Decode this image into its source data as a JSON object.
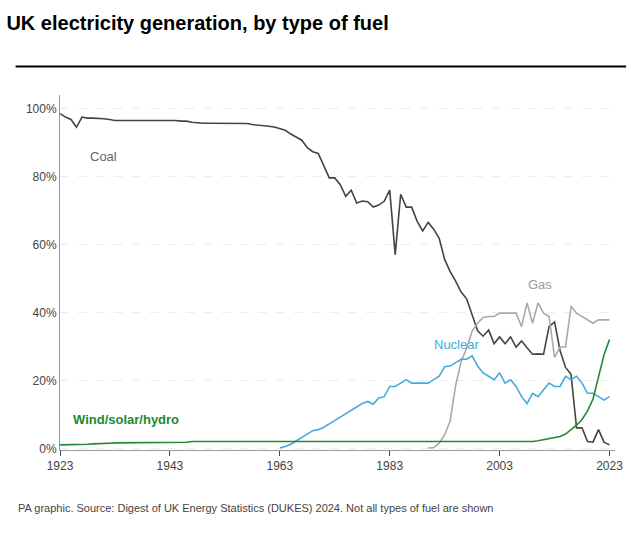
{
  "chart_data": {
    "type": "line",
    "title": "UK electricity generation, by type of fuel",
    "caption": "PA graphic. Source: Digest of UK Energy Statistics (DUKES) 2024. Not all types of fuel are shown",
    "x": [
      1923,
      1924,
      1925,
      1926,
      1927,
      1928,
      1929,
      1930,
      1931,
      1932,
      1933,
      1934,
      1935,
      1936,
      1937,
      1938,
      1939,
      1940,
      1941,
      1942,
      1943,
      1944,
      1945,
      1946,
      1947,
      1948,
      1949,
      1950,
      1951,
      1952,
      1953,
      1954,
      1955,
      1956,
      1957,
      1958,
      1959,
      1960,
      1961,
      1962,
      1963,
      1964,
      1965,
      1966,
      1967,
      1968,
      1969,
      1970,
      1971,
      1972,
      1973,
      1974,
      1975,
      1976,
      1977,
      1978,
      1979,
      1980,
      1981,
      1982,
      1983,
      1984,
      1985,
      1986,
      1987,
      1988,
      1989,
      1990,
      1991,
      1992,
      1993,
      1994,
      1995,
      1996,
      1997,
      1998,
      1999,
      2000,
      2001,
      2002,
      2003,
      2004,
      2005,
      2006,
      2007,
      2008,
      2009,
      2010,
      2011,
      2012,
      2013,
      2014,
      2015,
      2016,
      2017,
      2018,
      2019,
      2020,
      2021,
      2022,
      2023
    ],
    "series": [
      {
        "name": "Coal",
        "color": "#444444",
        "values": [
          0.985,
          0.975,
          0.968,
          0.945,
          0.975,
          0.972,
          0.972,
          0.972,
          0.97,
          0.968,
          0.965,
          0.965,
          0.965,
          0.965,
          0.965,
          0.965,
          0.966,
          0.967,
          0.967,
          0.967,
          0.967,
          0.965,
          0.963,
          0.963,
          0.96,
          0.958,
          0.957,
          0.957,
          0.957,
          0.956,
          0.956,
          0.956,
          0.956,
          0.956,
          0.956,
          0.953,
          0.952,
          0.951,
          0.948,
          0.946,
          0.94,
          0.936,
          0.925,
          0.915,
          0.907,
          0.885,
          0.873,
          0.868,
          0.831,
          0.796,
          0.796,
          0.776,
          0.742,
          0.76,
          0.722,
          0.728,
          0.726,
          0.71,
          0.716,
          0.727,
          0.76,
          0.57,
          0.748,
          0.71,
          0.71,
          0.668,
          0.64,
          0.665,
          0.645,
          0.618,
          0.556,
          0.52,
          0.492,
          0.46,
          0.44,
          0.39,
          0.346,
          0.33,
          0.348,
          0.308,
          0.328,
          0.308,
          0.328,
          0.298,
          0.316,
          0.296,
          0.277,
          0.278,
          0.277,
          0.358,
          0.372,
          0.288,
          0.238,
          0.218,
          0.06,
          0.06,
          0.02,
          0.018,
          0.055,
          0.018,
          0.01
        ]
      },
      {
        "name": "Gas",
        "color": "#aaaaaa",
        "values": [
          null,
          null,
          null,
          null,
          null,
          null,
          null,
          null,
          null,
          null,
          null,
          null,
          null,
          null,
          null,
          null,
          null,
          null,
          null,
          null,
          null,
          null,
          null,
          null,
          null,
          null,
          null,
          null,
          null,
          null,
          null,
          null,
          null,
          null,
          null,
          null,
          null,
          null,
          null,
          null,
          null,
          null,
          null,
          null,
          null,
          null,
          null,
          null,
          null,
          null,
          null,
          null,
          null,
          null,
          null,
          null,
          null,
          null,
          null,
          null,
          null,
          null,
          null,
          null,
          null,
          null,
          null,
          0.001,
          0.002,
          0.015,
          0.04,
          0.08,
          0.185,
          0.255,
          0.295,
          0.345,
          0.368,
          0.385,
          0.388,
          0.388,
          0.398,
          0.398,
          0.398,
          0.398,
          0.358,
          0.428,
          0.368,
          0.428,
          0.398,
          0.388,
          0.268,
          0.298,
          0.298,
          0.418,
          0.398,
          0.388,
          0.378,
          0.368,
          0.378,
          0.378,
          0.378
        ]
      },
      {
        "name": "Nuclear",
        "color": "#44aadd",
        "values": [
          null,
          null,
          null,
          null,
          null,
          null,
          null,
          null,
          null,
          null,
          null,
          null,
          null,
          null,
          null,
          null,
          null,
          null,
          null,
          null,
          null,
          null,
          null,
          null,
          null,
          null,
          null,
          null,
          null,
          null,
          null,
          null,
          null,
          null,
          null,
          null,
          null,
          null,
          null,
          null,
          0.001,
          0.005,
          0.012,
          0.022,
          0.03,
          0.042,
          0.052,
          0.055,
          0.062,
          0.072,
          0.082,
          0.092,
          0.102,
          0.112,
          0.122,
          0.132,
          0.138,
          0.13,
          0.148,
          0.152,
          0.182,
          0.182,
          0.192,
          0.202,
          0.192,
          0.192,
          0.192,
          0.192,
          0.202,
          0.212,
          0.24,
          0.242,
          0.252,
          0.262,
          0.262,
          0.272,
          0.242,
          0.222,
          0.212,
          0.202,
          0.222,
          0.192,
          0.202,
          0.182,
          0.152,
          0.132,
          0.162,
          0.152,
          0.172,
          0.192,
          0.182,
          0.182,
          0.212,
          0.202,
          0.212,
          0.192,
          0.162,
          0.162,
          0.152,
          0.142,
          0.152
        ]
      },
      {
        "name": "Wind/solar/hydro",
        "color": "#228833",
        "values": [
          0.01,
          0.01,
          0.01,
          0.012,
          0.012,
          0.012,
          0.013,
          0.013,
          0.015,
          0.015,
          0.016,
          0.016,
          0.017,
          0.018,
          0.018,
          0.018,
          0.018,
          0.018,
          0.018,
          0.018,
          0.018,
          0.018,
          0.018,
          0.018,
          0.02,
          0.02,
          0.02,
          0.02,
          0.02,
          0.02,
          0.02,
          0.02,
          0.02,
          0.02,
          0.02,
          0.018,
          0.018,
          0.018,
          0.018,
          0.018,
          0.018,
          0.018,
          0.018,
          0.018,
          0.018,
          0.018,
          0.018,
          0.018,
          0.018,
          0.018,
          0.018,
          0.018,
          0.018,
          0.018,
          0.018,
          0.018,
          0.018,
          0.018,
          0.018,
          0.018,
          0.018,
          0.018,
          0.018,
          0.018,
          0.018,
          0.018,
          0.018,
          0.018,
          0.018,
          0.018,
          0.018,
          0.018,
          0.018,
          0.018,
          0.018,
          0.018,
          0.018,
          0.018,
          0.018,
          0.018,
          0.018,
          0.018,
          0.018,
          0.018,
          0.018,
          0.02,
          0.02,
          0.022,
          0.025,
          0.028,
          0.03,
          0.035,
          0.042,
          0.055,
          0.068,
          0.085,
          0.11,
          0.145,
          0.21,
          0.275,
          0.32
        ]
      }
    ],
    "xlim": [
      1923,
      2024
    ],
    "xticks": [
      1923,
      1943,
      1963,
      1983,
      2003,
      2023
    ],
    "ylim": [
      -0.005,
      1.04
    ],
    "yticks": [
      {
        "value": 0,
        "label": "0%"
      },
      {
        "value": 0.2,
        "label": "20%"
      },
      {
        "value": 0.4,
        "label": "40%"
      },
      {
        "value": 0.6,
        "label": "60%"
      },
      {
        "value": 0.8,
        "label": "80%"
      },
      {
        "value": 1.0,
        "label": "100%"
      }
    ],
    "grid": "y"
  }
}
